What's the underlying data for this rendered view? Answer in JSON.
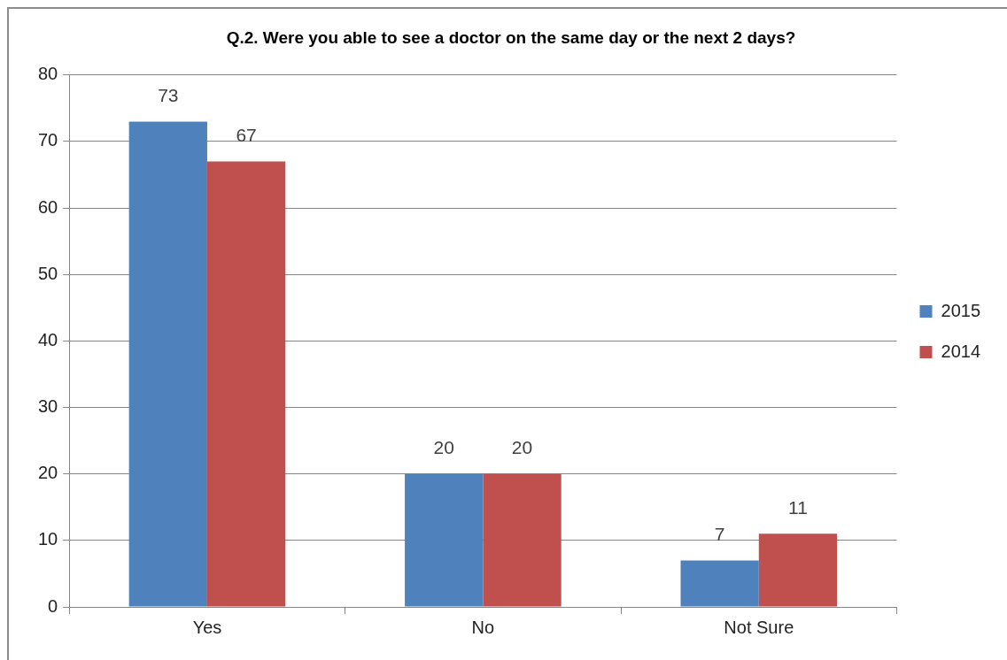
{
  "chart_data": {
    "type": "bar",
    "title": "Q.2. Were you able to see a doctor on the same day or the next 2 days?",
    "categories": [
      "Yes",
      "No",
      "Not Sure"
    ],
    "series": [
      {
        "name": "2015",
        "color": "#4f81bd",
        "values": [
          73,
          20,
          7
        ]
      },
      {
        "name": "2014",
        "color": "#c0504d",
        "values": [
          67,
          20,
          11
        ]
      }
    ],
    "ylim": [
      0,
      80
    ],
    "yticks": [
      0,
      10,
      20,
      30,
      40,
      50,
      60,
      70,
      80
    ],
    "grid": "y",
    "legend": "right",
    "data_labels": true
  }
}
